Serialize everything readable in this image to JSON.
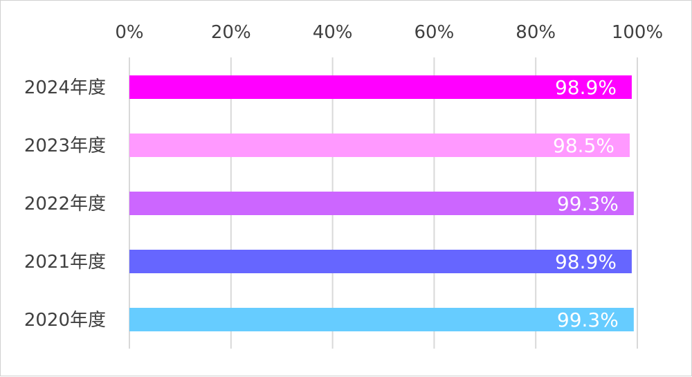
{
  "chart_data": {
    "type": "bar",
    "orientation": "horizontal",
    "categories": [
      "2024年度",
      "2023年度",
      "2022年度",
      "2021年度",
      "2020年度"
    ],
    "values": [
      98.9,
      98.5,
      99.3,
      98.9,
      99.3
    ],
    "value_labels": [
      "98.9%",
      "98.5%",
      "99.3%",
      "98.9%",
      "99.3%"
    ],
    "bar_colors": [
      "#ff00ff",
      "#ff99ff",
      "#cc66ff",
      "#6666ff",
      "#66ccff"
    ],
    "x_ticks": [
      0,
      20,
      40,
      60,
      80,
      100
    ],
    "x_tick_labels": [
      "0%",
      "20%",
      "40%",
      "60%",
      "80%",
      "100%"
    ],
    "xlim": [
      0,
      100
    ],
    "x_axis_position": "top",
    "grid": true,
    "legend": "none"
  }
}
